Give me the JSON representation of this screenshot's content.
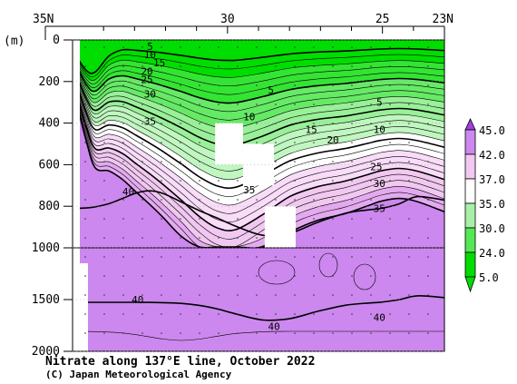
{
  "chart_data": {
    "type": "contour",
    "title": "Nitrate along 137°E line, October 2022",
    "credit": "(C) Japan Meteorological Agency",
    "yunit": "(m)",
    "x_ticks": [
      {
        "lat": 35,
        "label": "35N"
      },
      {
        "lat": 30,
        "label": "30"
      },
      {
        "lat": 25,
        "label": "25"
      },
      {
        "lat": 23,
        "label": "23N"
      }
    ],
    "xlim": [
      35,
      23
    ],
    "upper_panel": {
      "ylim": [
        0,
        1000
      ],
      "ticks": [
        0,
        200,
        400,
        600,
        800,
        1000
      ]
    },
    "lower_panel": {
      "ylim": [
        1000,
        2000
      ],
      "ticks": [
        1500,
        2000
      ]
    },
    "y_tick_labels": [
      "0",
      "200",
      "400",
      "600",
      "800",
      "1000",
      "1500",
      "2000"
    ],
    "levels": [
      5,
      24,
      30,
      35,
      37,
      42,
      45
    ],
    "level_labels": [
      "5.0",
      "24.0",
      "30.0",
      "35.0",
      "37.0",
      "42.0",
      "45.0"
    ],
    "level_colors": [
      "#00dd00",
      "#55e855",
      "#a8f0a8",
      "#ffffff",
      "#f0c8f0",
      "#cc88ee",
      "#a040e0"
    ],
    "contour_labels": [
      {
        "text": "5",
        "lat": 32.5,
        "depth": 30
      },
      {
        "text": "10",
        "lat": 32.5,
        "depth": 70
      },
      {
        "text": "15",
        "lat": 32.2,
        "depth": 110
      },
      {
        "text": "20",
        "lat": 32.6,
        "depth": 150
      },
      {
        "text": "25",
        "lat": 32.6,
        "depth": 190
      },
      {
        "text": "30",
        "lat": 32.5,
        "depth": 260
      },
      {
        "text": "35",
        "lat": 32.5,
        "depth": 390
      },
      {
        "text": "40",
        "lat": 33.2,
        "depth": 730
      },
      {
        "text": "5",
        "lat": 28.6,
        "depth": 240
      },
      {
        "text": "10",
        "lat": 29.3,
        "depth": 370
      },
      {
        "text": "15",
        "lat": 27.3,
        "depth": 430
      },
      {
        "text": "20",
        "lat": 26.6,
        "depth": 480
      },
      {
        "text": "35",
        "lat": 29.3,
        "depth": 720
      },
      {
        "text": "5",
        "lat": 25.1,
        "depth": 300
      },
      {
        "text": "10",
        "lat": 25.1,
        "depth": 430
      },
      {
        "text": "25",
        "lat": 25.2,
        "depth": 610
      },
      {
        "text": "30",
        "lat": 25.1,
        "depth": 690
      },
      {
        "text": "35",
        "lat": 25.1,
        "depth": 810
      },
      {
        "text": "40",
        "lat": 32.9,
        "depth": 1500
      },
      {
        "text": "40",
        "lat": 28.5,
        "depth": 1760
      },
      {
        "text": "40",
        "lat": 25.1,
        "depth": 1670
      }
    ],
    "missing_data": [
      {
        "lat_from": 30.4,
        "lat_to": 29.5,
        "depth_from": 400,
        "depth_to": 600
      },
      {
        "lat_from": 29.5,
        "lat_to": 28.5,
        "depth_from": 500,
        "depth_to": 700
      },
      {
        "lat_from": 28.8,
        "lat_to": 27.8,
        "depth_from": 800,
        "depth_to": 1000
      }
    ]
  }
}
